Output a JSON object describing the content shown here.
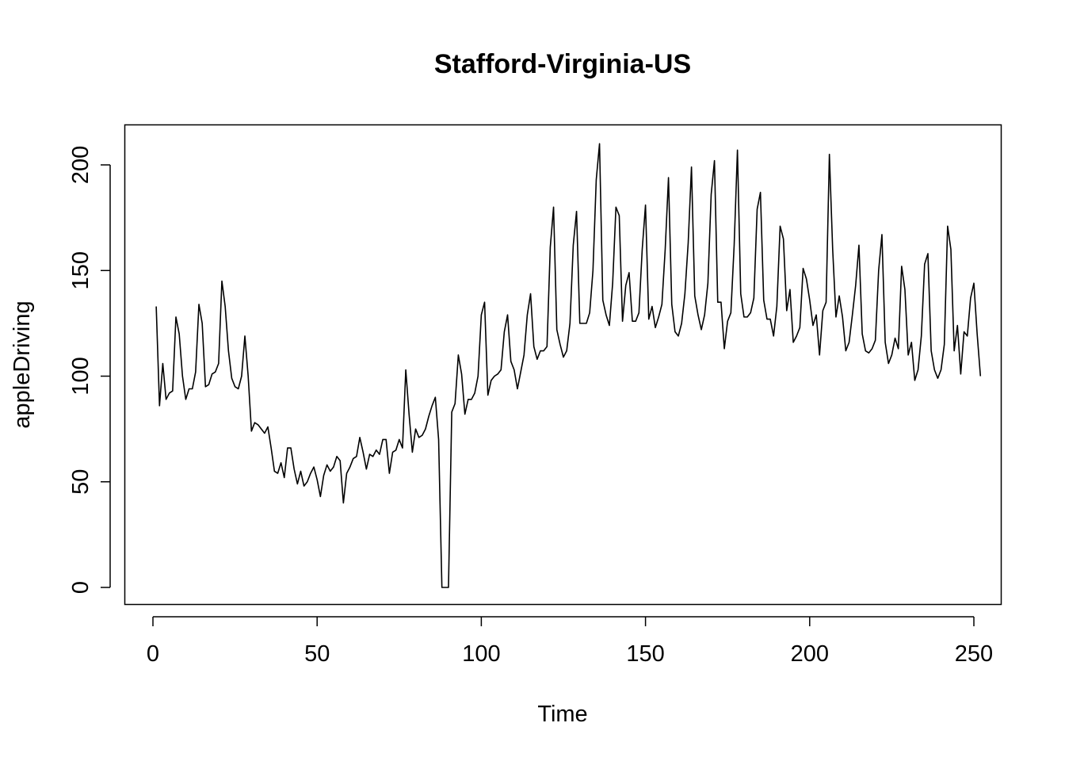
{
  "chart_data": {
    "type": "line",
    "title": "Stafford-Virginia-US",
    "xlabel": "Time",
    "ylabel": "appleDriving",
    "xlim": [
      0,
      250
    ],
    "ylim": [
      0,
      200
    ],
    "xticks": [
      0,
      50,
      100,
      150,
      200,
      250
    ],
    "yticks": [
      0,
      50,
      100,
      150,
      200
    ],
    "grid": false,
    "series": [
      {
        "color": "#000000",
        "x_start": 1,
        "values": [
          133,
          86,
          106,
          89,
          92,
          93,
          128,
          120,
          100,
          89,
          94,
          94,
          102,
          134,
          125,
          95,
          96,
          101,
          102,
          106,
          145,
          133,
          112,
          99,
          95,
          94,
          100,
          119,
          100,
          74,
          78,
          77,
          75,
          73,
          76,
          66,
          55,
          54,
          59,
          52,
          66,
          66,
          56,
          49,
          55,
          48,
          50,
          54,
          57,
          51,
          43,
          53,
          58,
          55,
          57,
          62,
          60,
          40,
          54,
          57,
          61,
          62,
          71,
          64,
          56,
          63,
          62,
          65,
          63,
          70,
          70,
          54,
          64,
          65,
          70,
          66,
          103,
          82,
          64,
          75,
          71,
          72,
          75,
          81,
          86,
          90,
          70,
          0,
          0,
          0,
          83,
          87,
          110,
          101,
          82,
          89,
          89,
          92,
          100,
          129,
          135,
          91,
          98,
          100,
          101,
          103,
          121,
          129,
          107,
          103,
          94,
          102,
          110,
          129,
          139,
          114,
          108,
          112,
          112,
          114,
          161,
          180,
          122,
          115,
          109,
          112,
          125,
          162,
          178,
          125,
          125,
          125,
          130,
          150,
          193,
          210,
          136,
          129,
          124,
          144,
          180,
          176,
          126,
          143,
          149,
          126,
          126,
          130,
          160,
          181,
          127,
          133,
          123,
          128,
          134,
          160,
          194,
          134,
          121,
          119,
          125,
          139,
          163,
          199,
          138,
          129,
          122,
          129,
          144,
          186,
          202,
          135,
          135,
          113,
          126,
          130,
          162,
          207,
          139,
          128,
          128,
          130,
          137,
          179,
          187,
          136,
          127,
          127,
          119,
          133,
          171,
          165,
          131,
          141,
          116,
          119,
          123,
          151,
          146,
          136,
          124,
          129,
          110,
          131,
          135,
          205,
          160,
          128,
          138,
          128,
          112,
          116,
          129,
          143,
          162,
          120,
          112,
          111,
          113,
          117,
          150,
          167,
          116,
          106,
          110,
          118,
          113,
          152,
          141,
          110,
          116,
          98,
          103,
          119,
          153,
          158,
          112,
          103,
          99,
          103,
          115,
          171,
          160,
          112,
          124,
          101,
          121,
          119,
          137,
          144,
          120,
          100
        ]
      }
    ]
  }
}
